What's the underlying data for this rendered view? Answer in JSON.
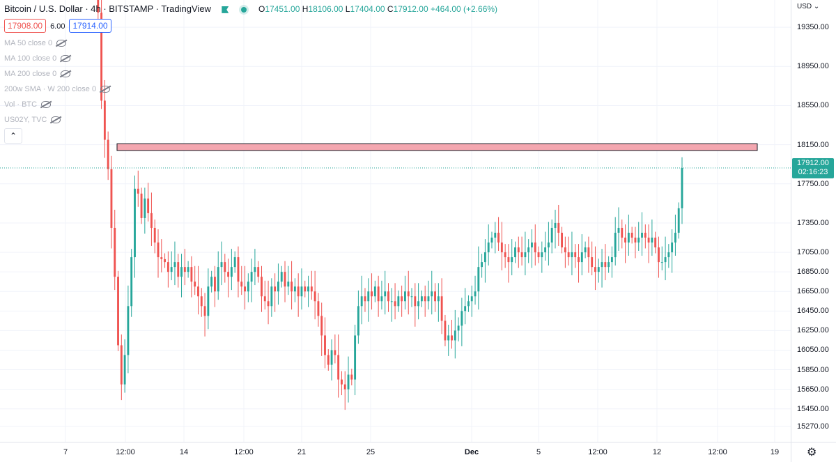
{
  "header": {
    "title": "Bitcoin / U.S. Dollar · 4h · BITSTAMP · TradingView",
    "ohlc": {
      "o_label": "O",
      "o": "17451.00",
      "h_label": "H",
      "h": "18106.00",
      "l_label": "L",
      "l": "17404.00",
      "c_label": "C",
      "c": "17912.00",
      "change": "+464.00 (+2.66%)"
    },
    "bid": "17908.00",
    "spread": "6.00",
    "ask": "17914.00"
  },
  "indicators": [
    "MA 50 close 0",
    "MA 100 close 0",
    "MA 200 close 0",
    "200w SMA · W 200 close 0",
    "Vol · BTC",
    "US02Y, TVC"
  ],
  "collapse_icon": "chevron-up-icon",
  "price_axis": {
    "currency": "USD",
    "last_price": "17912.00",
    "countdown": "02:16:23"
  },
  "colors": {
    "up": "#26a69a",
    "down": "#ef5350",
    "zone_fill": "#f4a7b0",
    "zone_border": "#131722",
    "last_line": "#26a69a"
  },
  "chart_data": {
    "type": "candlestick",
    "title": "Bitcoin / U.S. Dollar · 4h · BITSTAMP · TradingView",
    "ylim": [
      15270,
      19650
    ],
    "y_ticks": [
      "19350.00",
      "18950.00",
      "18550.00",
      "18150.00",
      "17750.00",
      "17350.00",
      "17050.00",
      "16850.00",
      "16650.00",
      "16450.00",
      "16250.00",
      "16050.00",
      "15850.00",
      "15650.00",
      "15450.00",
      "15270.00"
    ],
    "x_ticks": [
      "7",
      "12:00",
      "14",
      "12:00",
      "21",
      "25",
      "Dec",
      "5",
      "12:00",
      "12",
      "12:00",
      "19"
    ],
    "resistance_zone": {
      "low": 18090,
      "high": 18160
    },
    "last_price": 17912,
    "closes": [
      19700,
      19500,
      18600,
      18200,
      17900,
      17300,
      16800,
      16100,
      15700,
      16000,
      16500,
      17000,
      17700,
      17650,
      17400,
      17600,
      17450,
      17300,
      17150,
      17000,
      16980,
      16950,
      16850,
      16900,
      16950,
      16800,
      16900,
      16850,
      16900,
      16750,
      16700,
      16600,
      16500,
      16400,
      16700,
      16800,
      16650,
      16900,
      16950,
      16850,
      16800,
      16900,
      17000,
      16750,
      16700,
      16650,
      16750,
      16850,
      16900,
      16800,
      16600,
      16550,
      16500,
      16700,
      16650,
      16750,
      16850,
      16700,
      16750,
      16650,
      16700,
      16600,
      16700,
      16650,
      16700,
      16650,
      16550,
      16400,
      16200,
      16000,
      15900,
      16050,
      16000,
      15750,
      15700,
      15650,
      15800,
      15750,
      16200,
      16500,
      16600,
      16550,
      16650,
      16600,
      16700,
      16550,
      16600,
      16650,
      16550,
      16550,
      16500,
      16600,
      16550,
      16650,
      16600,
      16600,
      16500,
      16550,
      16600,
      16550,
      16600,
      16650,
      16550,
      16600,
      16350,
      16150,
      16200,
      16150,
      16250,
      16300,
      16450,
      16500,
      16550,
      16600,
      16650,
      16900,
      16950,
      17050,
      17150,
      17200,
      17250,
      17150,
      17050,
      17000,
      16950,
      17000,
      17100,
      17050,
      17000,
      17050,
      17100,
      17150,
      17050,
      17000,
      17050,
      17100,
      17150,
      17300,
      17350,
      17250,
      17100,
      17050,
      17000,
      17050,
      17000,
      16950,
      17050,
      17100,
      17000,
      16900,
      16850,
      16900,
      16950,
      16900,
      16950,
      17000,
      17250,
      17300,
      17200,
      17150,
      17250,
      17200,
      17150,
      17200,
      17250,
      17200,
      17150,
      17200,
      17100,
      16950,
      16950,
      17000,
      17050,
      17150,
      17250,
      17500,
      17912
    ]
  }
}
